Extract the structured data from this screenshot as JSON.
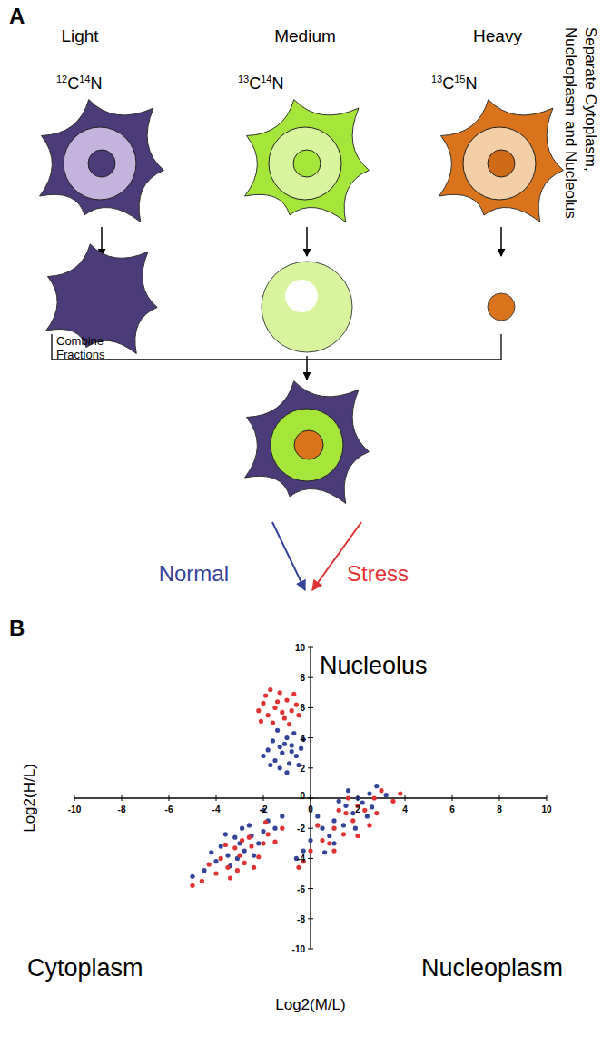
{
  "panel_labels": [
    "A",
    "B"
  ],
  "diagram": {
    "columns": [
      {
        "label": "Light",
        "isotope": [
          "12",
          "C",
          "14",
          "N"
        ]
      },
      {
        "label": "Medium",
        "isotope": [
          "13",
          "C",
          "14",
          "N"
        ]
      },
      {
        "label": "Heavy",
        "isotope": [
          "13",
          "C",
          "15",
          "N"
        ]
      }
    ],
    "side_text": [
      "Separate Cytoplasm,",
      "Nucleoplasm and Nucleolus"
    ],
    "combine_text": [
      "Combine",
      "Fractions"
    ]
  },
  "chart_data": {
    "type": "scatter",
    "xlabel": "Log2(M/L)",
    "ylabel": "Log2(H/L)",
    "xlim": [
      -10,
      10
    ],
    "ylim": [
      -10,
      10
    ],
    "xticks": [
      -10,
      -8,
      -6,
      -4,
      -2,
      0,
      2,
      4,
      6,
      8,
      10
    ],
    "yticks": [
      -10,
      -8,
      -6,
      -4,
      -2,
      0,
      2,
      4,
      6,
      8,
      10
    ],
    "grid": false,
    "marker": "circle",
    "annotations": [
      "Nucleolus",
      "Cytoplasm",
      "Nucleoplasm"
    ],
    "series": [
      {
        "name": "Normal",
        "color": "#34449a",
        "x": [
          -1.2,
          -0.8,
          -1.5,
          -0.6,
          -1.0,
          -1.8,
          -0.4,
          -1.3,
          -0.9,
          -1.6,
          -0.7,
          -1.1,
          -2.0,
          -0.5,
          -1.4,
          -0.3,
          -1.7,
          -1.0,
          -0.8,
          -1.3,
          -3.0,
          -2.5,
          -3.5,
          -2.0,
          -4.0,
          -2.8,
          -3.2,
          -1.8,
          -2.2,
          -4.5,
          -3.8,
          -2.6,
          -1.5,
          -3.4,
          -2.9,
          -4.2,
          -1.2,
          -3.6,
          -2.4,
          -5.0,
          -2.0,
          -3.1,
          1.5,
          2.0,
          1.0,
          2.5,
          0.5,
          1.8,
          2.2,
          0.0,
          1.2,
          2.8,
          0.8,
          1.6,
          -0.3,
          2.4,
          1.0,
          3.2,
          0.3,
          1.9,
          -0.6,
          2.6,
          1.4,
          0.6
        ],
        "values": [
          3.0,
          3.5,
          2.5,
          2.8,
          4.0,
          3.2,
          3.3,
          2.0,
          2.3,
          3.8,
          4.3,
          3.6,
          2.8,
          2.2,
          4.5,
          3.9,
          2.2,
          1.7,
          3.1,
          3.4,
          -3.0,
          -2.5,
          -3.8,
          -2.2,
          -4.2,
          -3.5,
          -2.6,
          -1.5,
          -3.0,
          -4.8,
          -3.2,
          -1.8,
          -2.0,
          -4.5,
          -2.0,
          -3.6,
          -1.2,
          -2.4,
          -3.8,
          -5.2,
          -0.8,
          -4.0,
          -0.5,
          0.0,
          -1.5,
          0.3,
          -2.0,
          -1.0,
          -0.3,
          -2.8,
          -0.2,
          0.8,
          -2.5,
          0.5,
          -3.5,
          -1.2,
          -3.0,
          0.2,
          -1.2,
          -2.0,
          -4.0,
          -0.6,
          -1.8,
          -3.6
        ]
      },
      {
        "name": "Stress",
        "color": "#e03232",
        "x": [
          -1.5,
          -1.0,
          -1.8,
          -0.8,
          -1.3,
          -2.0,
          -0.6,
          -1.6,
          -1.1,
          -1.9,
          -0.7,
          -1.4,
          -2.2,
          -0.9,
          -1.2,
          -1.7,
          -0.5,
          -2.1,
          -3.0,
          -2.5,
          -3.5,
          -2.0,
          -4.0,
          -2.8,
          -3.2,
          -1.8,
          -2.2,
          -4.6,
          -3.8,
          -2.6,
          -1.5,
          -3.4,
          -2.9,
          -4.3,
          -1.2,
          -3.6,
          -2.4,
          -5.0,
          -1.9,
          -3.1,
          1.5,
          2.0,
          1.0,
          2.7,
          0.5,
          1.8,
          2.3,
          0.0,
          1.2,
          3.0,
          0.8,
          1.6,
          -0.3,
          2.5,
          1.0,
          3.5,
          0.3,
          2.0,
          -0.5,
          2.8,
          1.4,
          3.8
        ],
        "values": [
          6.0,
          6.5,
          5.5,
          5.8,
          7.0,
          6.3,
          6.2,
          5.0,
          5.3,
          6.8,
          6.9,
          6.4,
          5.8,
          4.9,
          5.7,
          7.2,
          5.5,
          5.1,
          -3.8,
          -3.2,
          -4.6,
          -3.0,
          -5.0,
          -4.3,
          -3.3,
          -2.4,
          -3.9,
          -5.5,
          -4.0,
          -2.6,
          -2.9,
          -5.3,
          -2.8,
          -4.4,
          -2.0,
          -3.1,
          -4.6,
          -5.8,
          -1.6,
          -4.8,
          -1.0,
          -0.5,
          -2.0,
          0.0,
          -2.8,
          -1.5,
          -0.8,
          -3.5,
          -0.8,
          0.5,
          -3.0,
          0.0,
          -4.2,
          -1.8,
          -3.5,
          -0.2,
          -1.8,
          -2.5,
          -4.6,
          -1.0,
          -2.4,
          0.3
        ]
      }
    ]
  }
}
